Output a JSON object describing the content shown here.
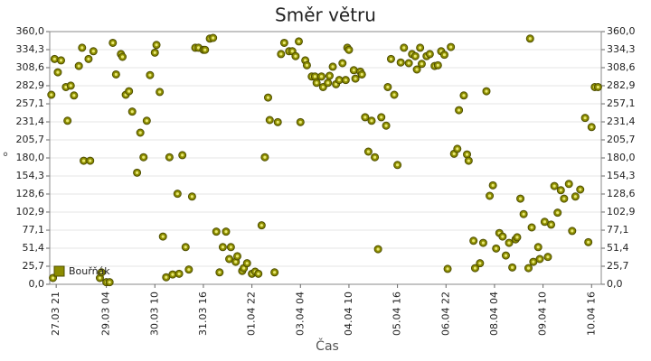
{
  "chart_data": {
    "type": "scatter",
    "title": "Směr větru",
    "xlabel": "Čas",
    "ylabel": "°",
    "xlim": [
      "27.03 17",
      "10.04 22"
    ],
    "xticks": [
      "27.03 21",
      "29.03 04",
      "30.03 10",
      "31.03 16",
      "01.04 22",
      "03.04 04",
      "04.04 10",
      "05.04 16",
      "06.04 22",
      "08.04 04",
      "09.04 10",
      "10.04 16"
    ],
    "ylim": [
      0,
      360
    ],
    "yticks": [
      {
        "value": 0,
        "label": "0,0"
      },
      {
        "value": 25.7,
        "label": "25,7"
      },
      {
        "value": 51.4,
        "label": "51,4"
      },
      {
        "value": 77.1,
        "label": "77,1"
      },
      {
        "value": 102.9,
        "label": "102,9"
      },
      {
        "value": 128.6,
        "label": "128,6"
      },
      {
        "value": 154.3,
        "label": "154,3"
      },
      {
        "value": 180,
        "label": "180,0"
      },
      {
        "value": 205.7,
        "label": "205,7"
      },
      {
        "value": 231.4,
        "label": "231,4"
      },
      {
        "value": 257.1,
        "label": "257,1"
      },
      {
        "value": 282.9,
        "label": "282,9"
      },
      {
        "value": 308.6,
        "label": "308,6"
      },
      {
        "value": 334.3,
        "label": "334,3"
      },
      {
        "value": 360,
        "label": "360,0"
      }
    ],
    "grid": true,
    "legend": "lower left",
    "series": [
      {
        "name": "Bouřňák",
        "color": "#8c8c00",
        "x": [
          "27.03 18",
          "27.03 19",
          "27.03 20",
          "27.03 22",
          "28.03 00",
          "28.03 03",
          "28.03 04",
          "28.03 06",
          "28.03 08",
          "28.03 11",
          "28.03 13",
          "28.03 14",
          "28.03 17",
          "28.03 18",
          "28.03 20",
          "29.03 00",
          "29.03 01",
          "29.03 04",
          "29.03 06",
          "29.03 08",
          "29.03 10",
          "29.03 13",
          "29.03 14",
          "29.03 16",
          "29.03 18",
          "29.03 20",
          "29.03 23",
          "30.03 01",
          "30.03 03",
          "30.03 05",
          "30.03 07",
          "30.03 10",
          "30.03 11",
          "30.03 13",
          "30.03 15",
          "30.03 17",
          "30.03 19",
          "30.03 21",
          "31.03 00",
          "31.03 01",
          "31.03 03",
          "31.03 05",
          "31.03 07",
          "31.03 09",
          "31.03 11",
          "31.03 13",
          "31.03 16",
          "31.03 17",
          "31.03 20",
          "31.03 22",
          "01.04 00",
          "01.04 02",
          "01.04 04",
          "01.04 06",
          "01.04 08",
          "01.04 09",
          "01.04 12",
          "01.04 13",
          "01.04 16",
          "01.04 17",
          "01.04 19",
          "01.04 22",
          "02.04 00",
          "02.04 02",
          "02.04 04",
          "02.04 06",
          "02.04 08",
          "02.04 09",
          "02.04 12",
          "02.04 14",
          "02.04 16",
          "02.04 18",
          "02.04 21",
          "02.04 23",
          "03.04 01",
          "03.04 03",
          "03.04 04",
          "03.04 07",
          "03.04 08",
          "03.04 11",
          "03.04 13",
          "03.04 14",
          "03.04 17",
          "03.04 18",
          "03.04 21",
          "03.04 22",
          "04.04 00",
          "04.04 02",
          "04.04 04",
          "04.04 06",
          "04.04 08",
          "04.04 09",
          "04.04 10",
          "04.04 13",
          "04.04 14",
          "04.04 17",
          "04.04 18",
          "04.04 20",
          "04.04 22",
          "05.04 00",
          "05.04 02",
          "05.04 04",
          "05.04 06",
          "05.04 09",
          "05.04 10",
          "05.04 12",
          "05.04 14",
          "05.04 16",
          "05.04 18",
          "05.04 20",
          "05.04 23",
          "06.04 01",
          "06.04 03",
          "06.04 04",
          "06.04 06",
          "06.04 07",
          "06.04 10",
          "06.04 12",
          "06.04 15",
          "06.04 17",
          "06.04 19",
          "06.04 21",
          "06.04 23",
          "07.04 01",
          "07.04 03",
          "07.04 05",
          "07.04 06",
          "07.04 09",
          "07.04 11",
          "07.04 12",
          "07.04 15",
          "07.04 16",
          "07.04 19",
          "07.04 21",
          "07.04 23",
          "08.04 01",
          "08.04 03",
          "08.04 05",
          "08.04 07",
          "08.04 09",
          "08.04 11",
          "08.04 13",
          "08.04 15",
          "08.04 17",
          "08.04 18",
          "08.04 20",
          "08.04 22",
          "09.04 01",
          "09.04 02",
          "09.04 03",
          "09.04 04",
          "09.04 07",
          "09.04 08",
          "09.04 11",
          "09.04 13",
          "09.04 15",
          "09.04 17",
          "09.04 19",
          "09.04 21",
          "09.04 23",
          "10.04 02",
          "10.04 04",
          "10.04 06",
          "10.04 09",
          "10.04 12",
          "10.04 14",
          "10.04 16",
          "10.04 18",
          "10.04 20"
        ],
        "values": [
          270,
          9,
          321,
          302,
          319,
          281,
          233,
          283,
          269,
          311,
          337,
          176,
          321,
          176,
          332,
          9,
          17,
          3,
          3,
          344,
          299,
          328,
          324,
          270,
          275,
          246,
          159,
          216,
          181,
          233,
          298,
          330,
          341,
          274,
          68,
          10,
          181,
          14,
          129,
          15,
          184,
          53,
          21,
          125,
          337,
          337,
          334,
          334,
          350,
          351,
          75,
          17,
          53,
          75,
          36,
          53,
          32,
          40,
          19,
          23,
          30,
          15,
          18,
          15,
          84,
          181,
          266,
          234,
          17,
          231,
          328,
          344,
          332,
          332,
          325,
          346,
          231,
          319,
          312,
          296,
          296,
          287,
          296,
          281,
          287,
          297,
          310,
          285,
          291,
          315,
          291,
          337,
          334,
          305,
          293,
          303,
          299,
          238,
          189,
          233,
          181,
          50,
          238,
          226,
          281,
          321,
          270,
          170,
          316,
          337,
          315,
          328,
          325,
          306,
          337,
          314,
          325,
          328,
          311,
          312,
          332,
          327,
          22,
          338,
          186,
          193,
          248,
          269,
          185,
          176,
          62,
          23,
          30,
          59,
          275,
          126,
          141,
          51,
          73,
          68,
          41,
          59,
          24,
          64,
          67,
          122,
          100,
          23,
          350,
          81,
          32,
          53,
          36,
          89,
          39,
          85,
          140,
          102,
          134,
          122,
          143,
          76,
          125,
          135,
          237,
          60,
          224,
          281,
          281
        ]
      }
    ]
  }
}
